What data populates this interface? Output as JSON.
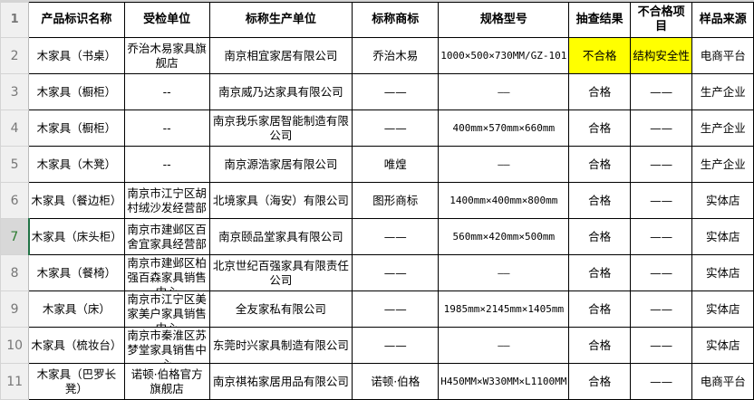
{
  "highlight_color": "#ffff00",
  "selected_row": 7,
  "headers": [
    "产品标识名称",
    "受检单位",
    "标称生产单位",
    "标称商标",
    "规格型号",
    "抽查结果",
    "不合格项目",
    "样品来源"
  ],
  "rows": [
    {
      "num": "2",
      "cells": [
        "木家具（书桌）",
        "乔治木易家具旗舰店",
        "南京相宜家居有限公司",
        "乔治木易",
        "1000×500×730MM/GZ-101",
        "不合格",
        "结构安全性",
        "电商平台"
      ],
      "highlight": [
        5,
        6
      ]
    },
    {
      "num": "3",
      "cells": [
        "木家具（橱柜）",
        "--",
        "南京威乃达家具有限公司",
        "——",
        "——",
        "合格",
        "——",
        "生产企业"
      ]
    },
    {
      "num": "4",
      "cells": [
        "木家具（橱柜）",
        "--",
        "南京我乐家居智能制造有限公司",
        "——",
        "400mm×570mm×660mm",
        "合格",
        "——",
        "生产企业"
      ]
    },
    {
      "num": "5",
      "cells": [
        "木家具（木凳）",
        "--",
        "南京源浩家居有限公司",
        "唯煌",
        "——",
        "合格",
        "——",
        "生产企业"
      ]
    },
    {
      "num": "6",
      "cells": [
        "木家具（餐边柜）",
        "南京市江宁区胡村绒沙发经营部",
        "北境家具（海安）有限公司",
        "图形商标",
        "1400mm×400mm×800mm",
        "合格",
        "——",
        "实体店"
      ]
    },
    {
      "num": "7",
      "cells": [
        "木家具（床头柜）",
        "南京市建邺区百舍宜家具经营部",
        "南京颐品堂家具有限公司",
        "——",
        "560mm×420mm×500mm",
        "合格",
        "——",
        "实体店"
      ]
    },
    {
      "num": "8",
      "cells": [
        "木家具（餐椅）",
        "南京市建邺区柏强百森家具销售中心",
        "北京世纪百强家具有限责任公司",
        "——",
        "——",
        "合格",
        "——",
        "实体店"
      ]
    },
    {
      "num": "9",
      "cells": [
        "木家具（床）",
        "南京市江宁区美家美户家具销售中心",
        "全友家私有限公司",
        "——",
        "1985mm×2145mm×1405mm",
        "合格",
        "——",
        "实体店"
      ]
    },
    {
      "num": "10",
      "cells": [
        "木家具（梳妆台）",
        "南京市秦淮区苏梦堂家具销售中心",
        "东莞时兴家具制造有限公司",
        "——",
        "——",
        "合格",
        "——",
        "实体店"
      ]
    },
    {
      "num": "11",
      "cells": [
        "木家具（巴罗长凳）",
        "诺顿·伯格官方旗舰店",
        "南京祺祐家居用品有限公司",
        "诺顿·伯格",
        "H450MM×W330MM×L1100MM",
        "合格",
        "——",
        "电商平台"
      ]
    }
  ]
}
